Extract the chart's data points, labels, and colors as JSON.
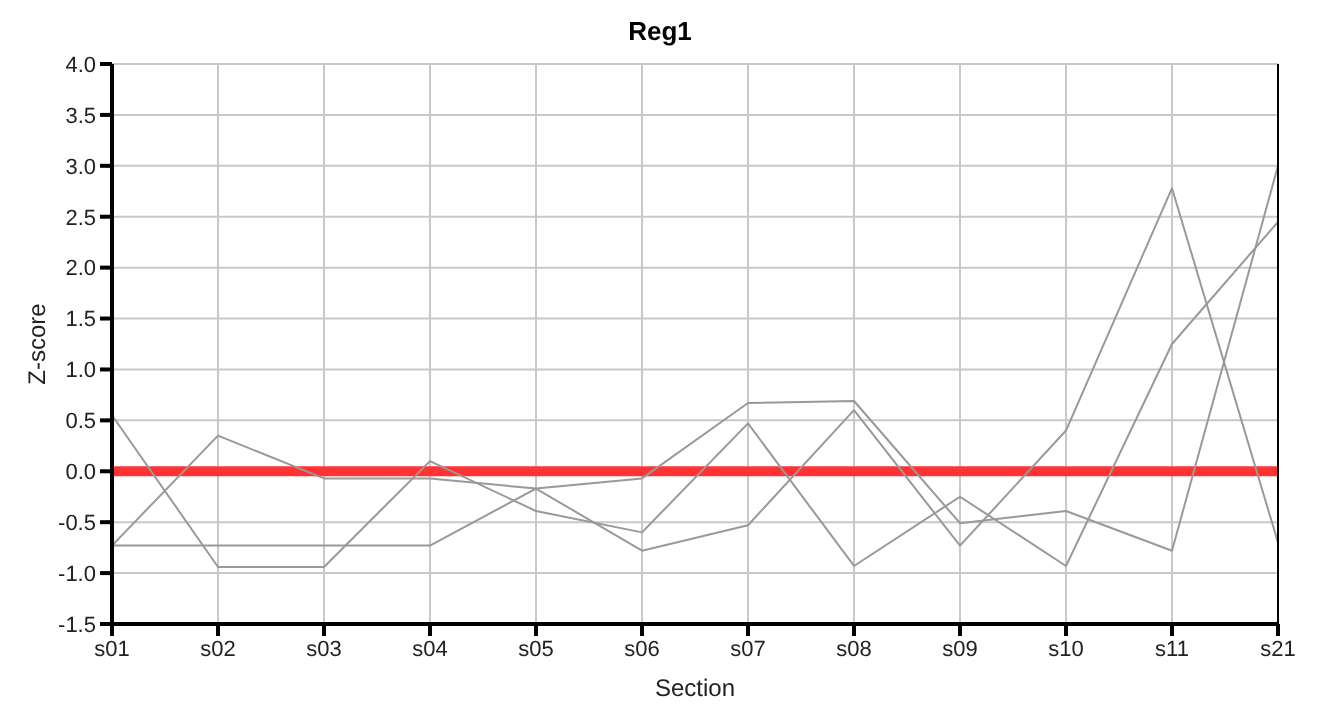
{
  "chart_data": {
    "type": "line",
    "title": "Reg1",
    "xlabel": "Section",
    "ylabel": "Z-score",
    "categories": [
      "s01",
      "s02",
      "s03",
      "s04",
      "s05",
      "s06",
      "s07",
      "s08",
      "s09",
      "s10",
      "s11",
      "s21"
    ],
    "series": [
      {
        "color": "#999999",
        "values": [
          0.55,
          -0.94,
          -0.94,
          0.1,
          -0.39,
          -0.6,
          0.47,
          -0.93,
          -0.25,
          -0.93,
          1.25,
          2.45
        ]
      },
      {
        "color": "#999999",
        "values": [
          -0.73,
          0.35,
          -0.07,
          -0.07,
          -0.17,
          -0.07,
          0.67,
          0.69,
          -0.51,
          -0.39,
          -0.78,
          3.0
        ]
      },
      {
        "color": "#999999",
        "values": [
          -0.73,
          -0.73,
          -0.73,
          -0.73,
          -0.17,
          -0.78,
          -0.53,
          0.6,
          -0.73,
          0.4,
          2.78,
          -0.7
        ]
      }
    ],
    "ylim": [
      -1.5,
      4.0
    ],
    "yticks": [
      {
        "value": -1.5,
        "label": "-1.5"
      },
      {
        "value": -1,
        "label": "-1.0"
      },
      {
        "value": -0.5,
        "label": "-0.5"
      },
      {
        "value": 0,
        "label": "0.0"
      },
      {
        "value": 0.5,
        "label": "0.5"
      },
      {
        "value": 1,
        "label": "1.0"
      },
      {
        "value": 1.5,
        "label": "1.5"
      },
      {
        "value": 2,
        "label": "2.0"
      },
      {
        "value": 2.5,
        "label": "2.5"
      },
      {
        "value": 3,
        "label": "3.0"
      },
      {
        "value": 3.5,
        "label": "3.5"
      },
      {
        "value": 4,
        "label": "4.0"
      }
    ],
    "ref_lines": [
      {
        "axis": "y",
        "value": 0,
        "color": "#ff3333"
      }
    ],
    "grid": true,
    "marker": "none",
    "line_style": "solid"
  }
}
